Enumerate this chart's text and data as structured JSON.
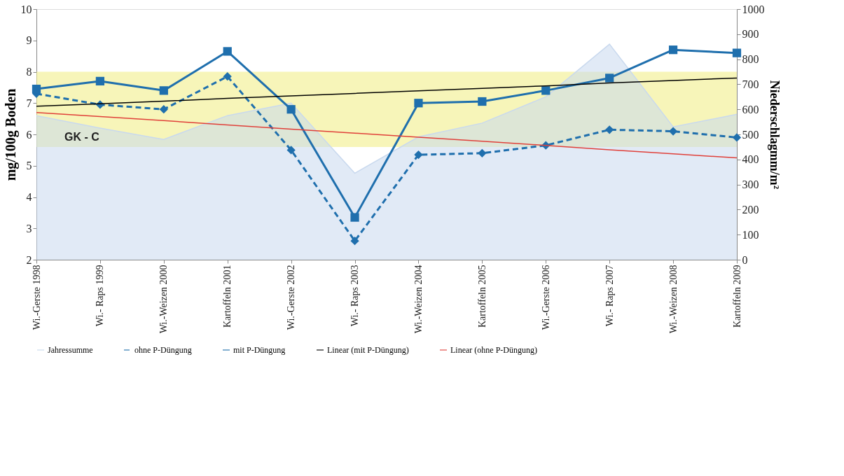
{
  "chart_data": {
    "type": "line",
    "ylabel": "mg/100g Boden",
    "y2label": "Niederschlagmm/m²",
    "categories": [
      "Wi.-Gerste 1998",
      "Wi.- Raps 1999",
      "Wi.-Weizen 2000",
      "Kartoffeln 2001",
      "Wi.-Gerste 2002",
      "Wi.- Raps 2003",
      "Wi.-Weizen 2004",
      "Kartoffeln 2005",
      "Wi.-Gerste 2006",
      "Wi.- Raps 2007",
      "Wi.-Weizen 2008",
      "Kartoffeln 2009"
    ],
    "series": [
      {
        "name": "Jahressumme",
        "type": "area",
        "axis": "y2",
        "color": "#c9d9ee",
        "values": [
          575,
          525,
          480,
          575,
          625,
          345,
          490,
          545,
          650,
          860,
          530,
          580
        ]
      },
      {
        "name": "ohne P-Düngung",
        "marker": "diamond",
        "line_style": "dashed",
        "color": "#1f6fad",
        "values": [
          7.3,
          6.95,
          6.8,
          7.85,
          5.5,
          2.6,
          5.35,
          5.4,
          5.65,
          6.15,
          6.1,
          5.9
        ]
      },
      {
        "name": "mit P-Düngung",
        "marker": "square",
        "line_style": "solid",
        "color": "#1f6fad",
        "values": [
          7.45,
          7.7,
          7.4,
          8.65,
          6.8,
          3.35,
          7.0,
          7.05,
          7.4,
          7.8,
          8.7,
          8.6
        ]
      },
      {
        "name": "Linear (mit P-Düngung)",
        "marker": "none",
        "line_style": "solid",
        "color": "#000000",
        "values": [
          6.9,
          6.98,
          7.06,
          7.15,
          7.23,
          7.31,
          7.39,
          7.47,
          7.55,
          7.64,
          7.72,
          7.8
        ]
      },
      {
        "name": "Linear (ohne P-Düngung)",
        "marker": "none",
        "line_style": "solid",
        "color": "#e0403a",
        "values": [
          6.7,
          6.57,
          6.44,
          6.3,
          6.17,
          6.04,
          5.91,
          5.78,
          5.65,
          5.51,
          5.38,
          5.25
        ]
      }
    ],
    "ylim": [
      2,
      10
    ],
    "yticks": [
      2,
      3,
      4,
      5,
      6,
      7,
      8,
      9,
      10
    ],
    "y2lim": [
      0,
      1000
    ],
    "y2ticks": [
      0,
      100,
      200,
      300,
      400,
      500,
      600,
      700,
      800,
      900,
      1000
    ],
    "bands": [
      {
        "axis": "y",
        "from": 5.6,
        "to": 8,
        "label": "GK - C",
        "color": "#f2ee8a"
      }
    ],
    "grid": false,
    "legend": "bottom"
  }
}
